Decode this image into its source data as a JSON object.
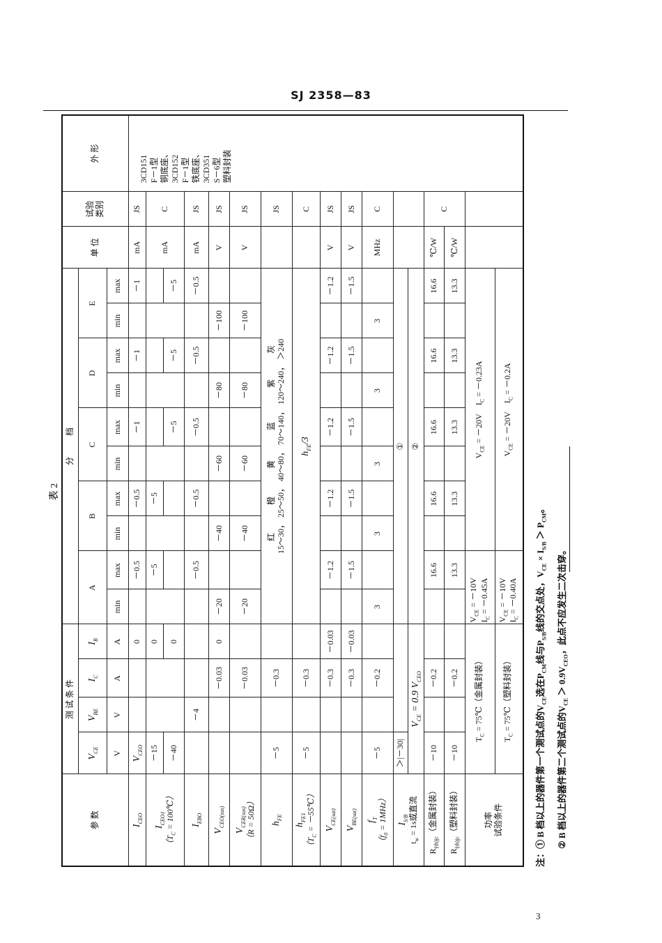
{
  "header": {
    "standard": "SJ 2358—83"
  },
  "page_number": "3",
  "table": {
    "caption": "表 2",
    "headers": {
      "param": "参  数",
      "conditions": "测 试 条 件",
      "grades": "分          档",
      "unit": "单 位",
      "test_class_1": "试验",
      "test_class_2": "类别",
      "shape": "外  形",
      "cond_cols": [
        "V_{CE}",
        "V_{BE}",
        "I_{C}",
        "I_{B}"
      ],
      "cond_units": [
        "V",
        "V",
        "A",
        "A"
      ],
      "grade_cols": [
        "A",
        "B",
        "C",
        "D",
        "E"
      ],
      "min": "min",
      "max": "max"
    },
    "shape_lines": [
      "3CD151",
      "F－1型",
      "铜底座、",
      "3CD152",
      "F－1型",
      "铁底座、",
      "3CD351",
      "S－6型",
      "塑料封装"
    ],
    "rows": [
      {
        "param": "I_{CEO}",
        "vce": "V_{CEO}",
        "ib": "0",
        "a_max": "－0.5",
        "b_max": "－0.5",
        "c_max": "－1",
        "d_max": "－1",
        "e_max": "－1",
        "unit": "mA",
        "class": "JS"
      },
      {
        "param": "I_{CEO1}",
        "note": "（T_{C} = 100℃）",
        "vce": [
          "－15",
          "－40"
        ],
        "ib": [
          "0",
          "0"
        ],
        "a_max": "－5",
        "b_max": "－5",
        "c_max": "－5",
        "d_max": "－5",
        "e_max": "－5",
        "unit": "mA",
        "class": "C"
      },
      {
        "param": "I_{EBO}",
        "vbe": "－4",
        "a_max": "－0.5",
        "b_max": "－0.5",
        "c_max": "－0.5",
        "d_max": "－0.5",
        "e_max": "－0.5",
        "unit": "mA",
        "class": "JS"
      },
      {
        "param": "V_{CEO(sus)}",
        "ic": "－0.03",
        "ib": "0",
        "a_min": "－20",
        "b_min": "－40",
        "c_min": "－60",
        "d_min": "－80",
        "e_min": "－100",
        "unit": "V",
        "class": "JS"
      },
      {
        "param": "V_{CER(sus)}",
        "note": "（R = 50Ω）",
        "ic": "－0.03",
        "a_min": "－20",
        "b_min": "－40",
        "c_min": "－60",
        "d_min": "－80",
        "e_min": "－100",
        "unit": "V",
        "class": "JS"
      },
      {
        "param": "h_{FE}",
        "vce": "－5",
        "ic": "－0.3",
        "grades": [
          {
            "color": "红",
            "range": "15～30，"
          },
          {
            "color": "橙",
            "range": "25～50，"
          },
          {
            "color": "黄",
            "range": "40～80，"
          },
          {
            "color": "蓝",
            "range": "70～140，"
          },
          {
            "color": "紫",
            "range": "120～240，"
          },
          {
            "color": "灰",
            "range": "＞240"
          }
        ],
        "class": "JS"
      },
      {
        "param": "h_{FE1}",
        "note": "（T_{C} = －55℃）",
        "vce": "－5",
        "ic": "－0.3",
        "grade_all": "h_{FE}/3",
        "class": "C"
      },
      {
        "param": "V_{CE(sat)}",
        "ic": "－0.3",
        "ib": "－0.03",
        "a_max": "－1.2",
        "b_max": "－1.2",
        "c_max": "－1.2",
        "d_max": "－1.2",
        "e_max": "－1.2",
        "unit": "V",
        "class": "JS"
      },
      {
        "param": "V_{BE(sat)}",
        "ic": "－0.3",
        "ib": "－0.03",
        "a_max": "－1.5",
        "b_max": "－1.5",
        "c_max": "－1.5",
        "d_max": "－1.5",
        "e_max": "－1.5",
        "unit": "V",
        "class": "JS"
      },
      {
        "param": "f_{T}",
        "note": "（f_{0} = 1MHz）",
        "vce": "－5",
        "ic": "－0.2",
        "a_min": "3",
        "b_min": "3",
        "c_min": "3",
        "d_min": "3",
        "e_min": "3",
        "unit": "MHz",
        "class": "C"
      },
      {
        "param": "I_{S/B}",
        "note": "t_{w} = 1s或直流",
        "vce_1": "＞|－30|",
        "cond_2": "V_{CE} = 0.9 V_{CEO}",
        "grade_1": "①",
        "grade_2": "②"
      },
      {
        "param": "R_{(th)jc}（金属封装）",
        "vce": "－10",
        "ic": "－0.2",
        "a_max": "16.6",
        "b_max": "16.6",
        "c_max": "16.6",
        "d_max": "16.6",
        "e_max": "16.6",
        "unit": "℃/W",
        "class": "C"
      },
      {
        "param": "R_{(th)jc}（塑料封装）",
        "vce": "－10",
        "ic": "－0.2",
        "a_max": "13.3",
        "b_max": "13.3",
        "c_max": "13.3",
        "d_max": "13.3",
        "e_max": "13.3",
        "unit": "℃/W"
      },
      {
        "param_1": "功率",
        "param_2": "试验条件",
        "cond": [
          "T_{C} = 75℃（金属封装）",
          "T_{C} = 75℃（塑料封装）"
        ],
        "a": [
          [
            "V_{CE} = －10V",
            "I_{C} = －0.45A"
          ],
          [
            "V_{CE} = －10V",
            "I_{C} = －0.40A"
          ]
        ],
        "bcde": [
          "V_{CE} = －20V    I_{C} = －0.23A",
          "V_{CE} = －20V    I_{C} = －0.2A"
        ]
      }
    ]
  },
  "notes": [
    "注：① B 档以上的器件第一个测试点的V_{CE}选在P_{CM}线与P_{S/B}线的交点处，V_{CE} × I_{S/B} ＞ P_{CM}。",
    "② B 档以上的器件第二个测试点的V_{CE} ＞ 0.9V_{CEO}，此点不应发生二次击穿。"
  ]
}
